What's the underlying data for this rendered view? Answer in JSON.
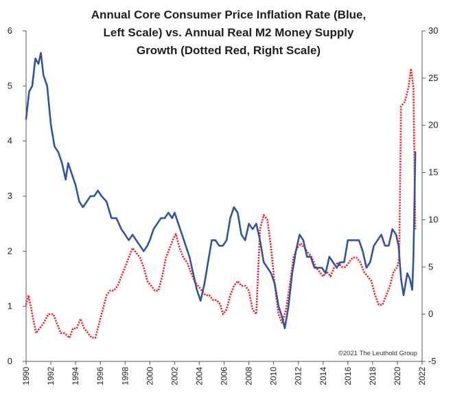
{
  "colors": {
    "blue": "#2f54a3",
    "red": "#ff1a1a",
    "axis": "#555555"
  },
  "chart_data": {
    "type": "line",
    "title_lines": [
      "Annual Core Consumer Price Inflation Rate (Blue,",
      "Left Scale) vs. Annual Real M2 Money Supply",
      "Growth (Dotted Red, Right Scale)"
    ],
    "copyright": "©2021 The Leuthold Group",
    "x_range": [
      1990,
      2022
    ],
    "x_ticks": [
      "1990",
      "1992",
      "1994",
      "1996",
      "1998",
      "2000",
      "2002",
      "2004",
      "2006",
      "2008",
      "2010",
      "2012",
      "2014",
      "2016",
      "2018",
      "2020",
      "2022"
    ],
    "y_left": {
      "range": [
        0,
        6
      ],
      "ticks": [
        "0",
        "1",
        "2",
        "3",
        "4",
        "5",
        "6"
      ]
    },
    "y_right": {
      "range": [
        -5,
        30
      ],
      "ticks": [
        "-5",
        "0",
        "5",
        "10",
        "15",
        "20",
        "25",
        "30"
      ]
    },
    "grid": false,
    "series": [
      {
        "axis": "left",
        "style": "solid",
        "points": [
          [
            1990.0,
            4.4
          ],
          [
            1990.25,
            4.9
          ],
          [
            1990.5,
            5.0
          ],
          [
            1990.75,
            5.5
          ],
          [
            1991.0,
            5.4
          ],
          [
            1991.2,
            5.6
          ],
          [
            1991.4,
            5.2
          ],
          [
            1991.7,
            5.0
          ],
          [
            1992.0,
            4.3
          ],
          [
            1992.3,
            3.9
          ],
          [
            1992.6,
            3.8
          ],
          [
            1992.9,
            3.6
          ],
          [
            1993.2,
            3.3
          ],
          [
            1993.4,
            3.6
          ],
          [
            1993.7,
            3.4
          ],
          [
            1994.0,
            3.2
          ],
          [
            1994.3,
            2.9
          ],
          [
            1994.6,
            2.8
          ],
          [
            1994.9,
            2.9
          ],
          [
            1995.2,
            3.0
          ],
          [
            1995.5,
            3.0
          ],
          [
            1995.8,
            3.1
          ],
          [
            1996.1,
            3.0
          ],
          [
            1996.5,
            2.9
          ],
          [
            1996.9,
            2.6
          ],
          [
            1997.3,
            2.6
          ],
          [
            1997.7,
            2.4
          ],
          [
            1998.0,
            2.3
          ],
          [
            1998.3,
            2.2
          ],
          [
            1998.6,
            2.3
          ],
          [
            1998.9,
            2.2
          ],
          [
            1999.2,
            2.1
          ],
          [
            1999.5,
            2.0
          ],
          [
            1999.8,
            2.1
          ],
          [
            2000.0,
            2.2
          ],
          [
            2000.3,
            2.4
          ],
          [
            2000.6,
            2.5
          ],
          [
            2000.9,
            2.6
          ],
          [
            2001.2,
            2.6
          ],
          [
            2001.5,
            2.7
          ],
          [
            2001.8,
            2.6
          ],
          [
            2002.0,
            2.7
          ],
          [
            2002.3,
            2.5
          ],
          [
            2002.6,
            2.3
          ],
          [
            2002.9,
            2.1
          ],
          [
            2003.2,
            1.9
          ],
          [
            2003.5,
            1.6
          ],
          [
            2003.8,
            1.3
          ],
          [
            2004.1,
            1.1
          ],
          [
            2004.4,
            1.4
          ],
          [
            2004.7,
            1.8
          ],
          [
            2005.0,
            2.2
          ],
          [
            2005.3,
            2.2
          ],
          [
            2005.6,
            2.1
          ],
          [
            2005.9,
            2.1
          ],
          [
            2006.2,
            2.2
          ],
          [
            2006.5,
            2.6
          ],
          [
            2006.8,
            2.8
          ],
          [
            2007.1,
            2.7
          ],
          [
            2007.4,
            2.3
          ],
          [
            2007.7,
            2.2
          ],
          [
            2008.0,
            2.5
          ],
          [
            2008.3,
            2.4
          ],
          [
            2008.6,
            2.5
          ],
          [
            2008.9,
            2.2
          ],
          [
            2009.2,
            1.8
          ],
          [
            2009.5,
            1.7
          ],
          [
            2009.8,
            1.6
          ],
          [
            2010.1,
            1.4
          ],
          [
            2010.4,
            1.0
          ],
          [
            2010.7,
            0.8
          ],
          [
            2010.9,
            0.6
          ],
          [
            2011.2,
            1.0
          ],
          [
            2011.5,
            1.6
          ],
          [
            2011.8,
            2.0
          ],
          [
            2012.1,
            2.3
          ],
          [
            2012.4,
            2.2
          ],
          [
            2012.7,
            1.9
          ],
          [
            2013.0,
            1.9
          ],
          [
            2013.3,
            1.7
          ],
          [
            2013.6,
            1.7
          ],
          [
            2013.9,
            1.7
          ],
          [
            2014.2,
            1.6
          ],
          [
            2014.5,
            1.9
          ],
          [
            2014.8,
            1.8
          ],
          [
            2015.1,
            1.7
          ],
          [
            2015.4,
            1.8
          ],
          [
            2015.7,
            1.8
          ],
          [
            2016.0,
            2.2
          ],
          [
            2016.3,
            2.2
          ],
          [
            2016.6,
            2.2
          ],
          [
            2016.9,
            2.2
          ],
          [
            2017.2,
            2.0
          ],
          [
            2017.5,
            1.7
          ],
          [
            2017.8,
            1.8
          ],
          [
            2018.1,
            2.1
          ],
          [
            2018.4,
            2.2
          ],
          [
            2018.7,
            2.3
          ],
          [
            2019.0,
            2.1
          ],
          [
            2019.3,
            2.1
          ],
          [
            2019.6,
            2.4
          ],
          [
            2019.9,
            2.3
          ],
          [
            2020.1,
            2.1
          ],
          [
            2020.3,
            1.5
          ],
          [
            2020.5,
            1.2
          ],
          [
            2020.8,
            1.6
          ],
          [
            2021.0,
            1.5
          ],
          [
            2021.2,
            1.3
          ],
          [
            2021.3,
            1.9
          ],
          [
            2021.45,
            3.8
          ]
        ]
      },
      {
        "axis": "right",
        "style": "dotted",
        "points": [
          [
            1990.0,
            1.0
          ],
          [
            1990.2,
            2.0
          ],
          [
            1990.5,
            0.0
          ],
          [
            1990.8,
            -2.0
          ],
          [
            1991.1,
            -1.5
          ],
          [
            1991.4,
            -1.0
          ],
          [
            1991.8,
            0.0
          ],
          [
            1992.2,
            0.0
          ],
          [
            1992.5,
            -1.0
          ],
          [
            1992.8,
            -2.0
          ],
          [
            1993.1,
            -2.0
          ],
          [
            1993.5,
            -2.5
          ],
          [
            1993.8,
            -1.5
          ],
          [
            1994.1,
            -1.5
          ],
          [
            1994.4,
            -0.5
          ],
          [
            1994.7,
            -1.5
          ],
          [
            1995.0,
            -2.0
          ],
          [
            1995.3,
            -2.5
          ],
          [
            1995.6,
            -2.5
          ],
          [
            1995.9,
            -1.0
          ],
          [
            1996.2,
            0.5
          ],
          [
            1996.5,
            2.0
          ],
          [
            1996.8,
            2.5
          ],
          [
            1997.1,
            2.5
          ],
          [
            1997.4,
            3.0
          ],
          [
            1997.7,
            4.0
          ],
          [
            1998.0,
            5.0
          ],
          [
            1998.3,
            6.0
          ],
          [
            1998.6,
            7.0
          ],
          [
            1998.9,
            6.5
          ],
          [
            1999.2,
            6.0
          ],
          [
            1999.5,
            5.0
          ],
          [
            1999.8,
            3.5
          ],
          [
            2000.1,
            3.0
          ],
          [
            2000.4,
            2.5
          ],
          [
            2000.7,
            2.5
          ],
          [
            2001.0,
            4.0
          ],
          [
            2001.3,
            6.0
          ],
          [
            2001.6,
            7.0
          ],
          [
            2001.9,
            8.0
          ],
          [
            2002.1,
            8.5
          ],
          [
            2002.4,
            7.0
          ],
          [
            2002.7,
            6.0
          ],
          [
            2003.0,
            5.5
          ],
          [
            2003.3,
            4.5
          ],
          [
            2003.6,
            3.5
          ],
          [
            2003.9,
            3.0
          ],
          [
            2004.2,
            2.5
          ],
          [
            2004.5,
            2.0
          ],
          [
            2004.8,
            2.0
          ],
          [
            2005.1,
            1.5
          ],
          [
            2005.4,
            1.5
          ],
          [
            2005.7,
            1.0
          ],
          [
            2005.9,
            0.0
          ],
          [
            2006.2,
            0.5
          ],
          [
            2006.5,
            2.0
          ],
          [
            2006.8,
            3.0
          ],
          [
            2007.1,
            3.5
          ],
          [
            2007.4,
            3.0
          ],
          [
            2007.7,
            3.0
          ],
          [
            2008.0,
            2.5
          ],
          [
            2008.3,
            0.5
          ],
          [
            2008.6,
            0.0
          ],
          [
            2008.9,
            9.0
          ],
          [
            2009.2,
            10.5
          ],
          [
            2009.5,
            10.0
          ],
          [
            2009.8,
            7.0
          ],
          [
            2010.1,
            3.0
          ],
          [
            2010.4,
            0.0
          ],
          [
            2010.7,
            -1.0
          ],
          [
            2011.0,
            0.5
          ],
          [
            2011.3,
            3.0
          ],
          [
            2011.6,
            6.0
          ],
          [
            2011.9,
            7.0
          ],
          [
            2012.2,
            7.5
          ],
          [
            2012.5,
            7.0
          ],
          [
            2012.8,
            6.5
          ],
          [
            2013.1,
            6.0
          ],
          [
            2013.4,
            5.0
          ],
          [
            2013.7,
            4.5
          ],
          [
            2014.0,
            4.0
          ],
          [
            2014.3,
            4.5
          ],
          [
            2014.6,
            4.0
          ],
          [
            2014.9,
            5.0
          ],
          [
            2015.2,
            5.5
          ],
          [
            2015.5,
            5.0
          ],
          [
            2015.8,
            5.0
          ],
          [
            2016.1,
            5.5
          ],
          [
            2016.4,
            6.0
          ],
          [
            2016.7,
            6.0
          ],
          [
            2017.0,
            5.5
          ],
          [
            2017.3,
            4.5
          ],
          [
            2017.6,
            4.0
          ],
          [
            2017.9,
            3.5
          ],
          [
            2018.2,
            2.0
          ],
          [
            2018.5,
            1.0
          ],
          [
            2018.8,
            1.0
          ],
          [
            2019.1,
            2.0
          ],
          [
            2019.4,
            3.0
          ],
          [
            2019.7,
            4.5
          ],
          [
            2020.0,
            5.0
          ],
          [
            2020.15,
            6.0
          ],
          [
            2020.3,
            22.0
          ],
          [
            2020.6,
            22.5
          ],
          [
            2020.9,
            24.0
          ],
          [
            2021.1,
            26.0
          ],
          [
            2021.3,
            24.0
          ],
          [
            2021.45,
            9.0
          ]
        ]
      }
    ]
  }
}
